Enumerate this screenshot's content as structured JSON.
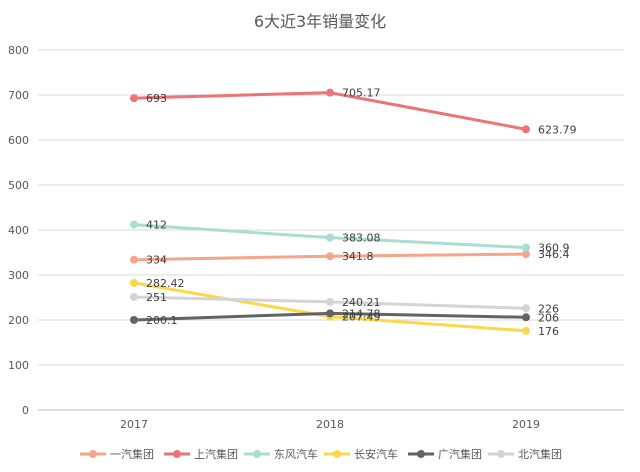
{
  "chart_data": {
    "type": "line",
    "title": "6大近3年销量变化",
    "xlabel": "",
    "ylabel": "",
    "ylim": [
      0,
      800
    ],
    "yticks": [
      0,
      100,
      200,
      300,
      400,
      500,
      600,
      700,
      800
    ],
    "categories": [
      "2017",
      "2018",
      "2019"
    ],
    "legend_position": "bottom",
    "grid": true,
    "series": [
      {
        "name": "一汽集团",
        "color": "#F4A58A",
        "values": [
          334,
          341.8,
          346.4
        ],
        "labels": [
          "334",
          "341.8",
          "346.4"
        ]
      },
      {
        "name": "上汽集团",
        "color": "#EC7378",
        "values": [
          693,
          705.17,
          623.79
        ],
        "labels": [
          "693",
          "705.17",
          "623.79"
        ]
      },
      {
        "name": "东风汽车",
        "color": "#A9DDD1",
        "values": [
          412,
          383.08,
          360.9
        ],
        "labels": [
          "412",
          "383.08",
          "360.9"
        ]
      },
      {
        "name": "长安汽车",
        "color": "#FBD84A",
        "values": [
          282.42,
          207.49,
          176
        ],
        "labels": [
          "282.42",
          "207.49",
          "176"
        ]
      },
      {
        "name": "广汽集团",
        "color": "#636363",
        "values": [
          200.1,
          214.78,
          206
        ],
        "labels": [
          "200.1",
          "214.78",
          "206"
        ]
      },
      {
        "name": "北汽集团",
        "color": "#D4D4D4",
        "values": [
          251,
          240.21,
          226
        ],
        "labels": [
          "251",
          "240.21",
          "226"
        ]
      }
    ]
  }
}
